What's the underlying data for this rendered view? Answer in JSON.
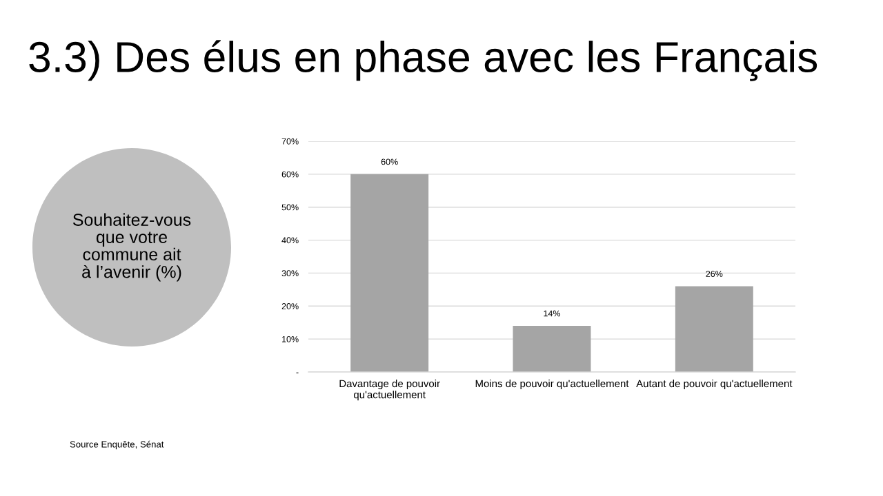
{
  "chart_data": {
    "type": "bar",
    "title": "3.3) Des élus en phase avec les Français",
    "subtitle": "Souhaitez-vous que votre commune ait à l’avenir (%)",
    "categories": [
      "Davantage de pouvoir qu'actuellement",
      "Moins de pouvoir qu'actuellement",
      "Autant de pouvoir qu'actuellement"
    ],
    "values": [
      60,
      14,
      26
    ],
    "color": "#a5a5a5",
    "value_labels": [
      "60%",
      "14%",
      "26%"
    ],
    "ylim": [
      0,
      70
    ],
    "yticks": [
      {
        "value": 0,
        "label": "-"
      },
      {
        "value": 10,
        "label": "10%"
      },
      {
        "value": 20,
        "label": "20%"
      },
      {
        "value": 30,
        "label": "30%"
      },
      {
        "value": 40,
        "label": "40%"
      },
      {
        "value": 50,
        "label": "50%"
      },
      {
        "value": 60,
        "label": "60%"
      },
      {
        "value": 70,
        "label": "70%"
      }
    ],
    "grid": "y",
    "annotations": [
      "Source Enquête, Sénat"
    ]
  }
}
